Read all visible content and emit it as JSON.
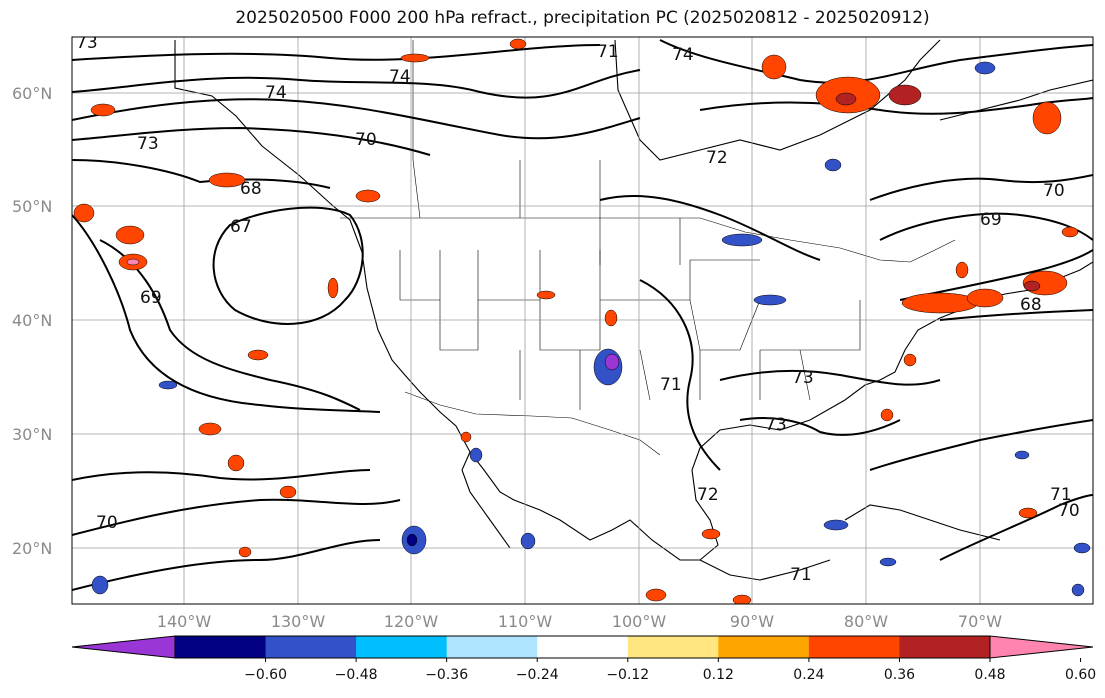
{
  "title": "2025020500 F000 200 hPa refract., precipitation PC (2025020812 - 2025020912)",
  "lat_labels": [
    "60°N",
    "50°N",
    "40°N",
    "30°N",
    "20°N"
  ],
  "lon_labels": [
    "140°W",
    "130°W",
    "120°W",
    "110°W",
    "100°W",
    "90°W",
    "80°W",
    "70°W"
  ],
  "contour_labels": [
    "73",
    "74",
    "74",
    "73",
    "70",
    "68",
    "67",
    "69",
    "72",
    "71",
    "70",
    "69",
    "68",
    "73",
    "73",
    "71",
    "72",
    "70",
    "70",
    "71",
    "74",
    "71"
  ],
  "colorbar": {
    "ticks": [
      "−0.60",
      "−0.48",
      "−0.36",
      "−0.24",
      "−0.12",
      "0.12",
      "0.24",
      "0.36",
      "0.48",
      "0.60"
    ],
    "colors": [
      "#9a35d6",
      "#000080",
      "#3452c8",
      "#00bfff",
      "#aee4ff",
      "#ffffff",
      "#ffe680",
      "#ffa500",
      "#ff4500",
      "#b22222",
      "#ff85b0"
    ]
  }
}
